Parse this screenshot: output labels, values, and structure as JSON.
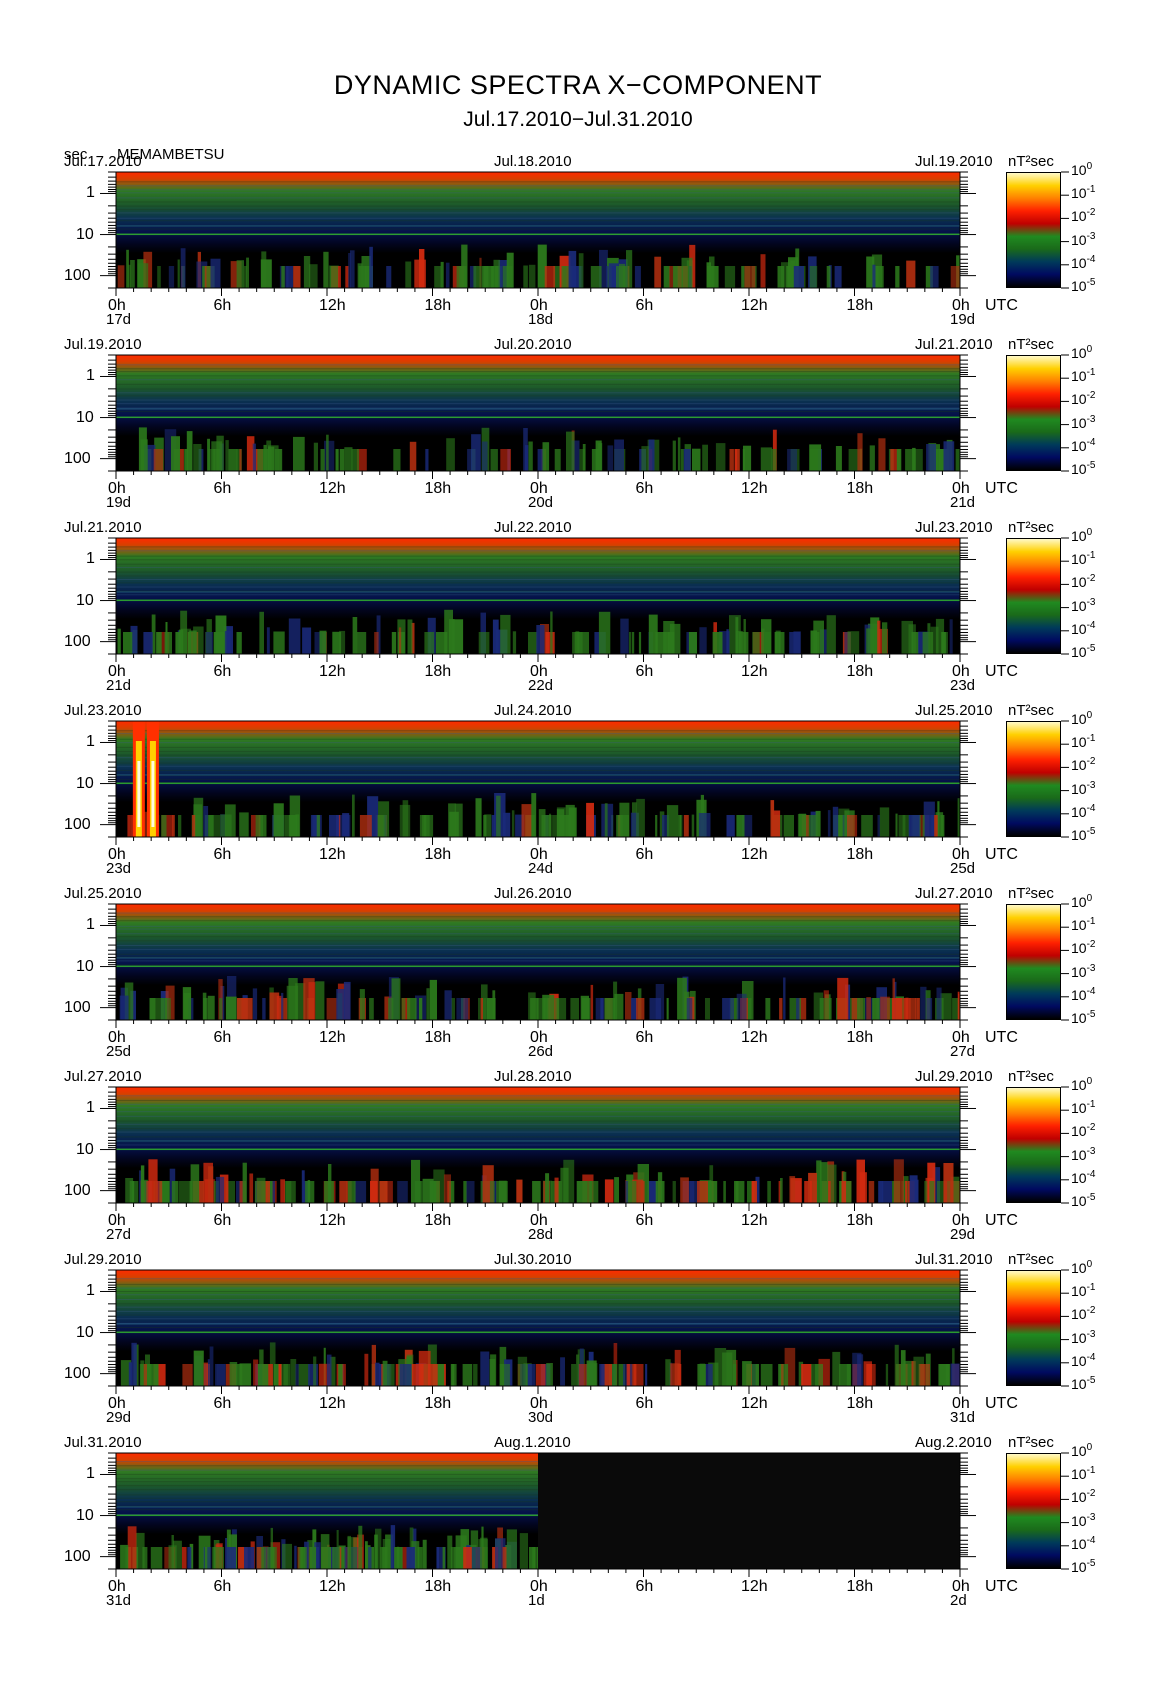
{
  "header": {
    "title": "DYNAMIC SPECTRA X−COMPONENT",
    "subtitle": "Jul.17.2010−Jul.31.2010",
    "unit_label": "sec",
    "station": "MEMAMBETSU"
  },
  "colorbar": {
    "unit": "nT²sec",
    "labels": [
      {
        "base": "10",
        "exp": "0"
      },
      {
        "base": "10",
        "exp": "-1"
      },
      {
        "base": "10",
        "exp": "-2"
      },
      {
        "base": "10",
        "exp": "-3"
      },
      {
        "base": "10",
        "exp": "-4"
      },
      {
        "base": "10",
        "exp": "-5"
      }
    ],
    "colors": [
      "#fff9c8",
      "#ffd000",
      "#ff8000",
      "#ff2000",
      "#c00000",
      "#208a20",
      "#1a6a1a",
      "#003a5a",
      "#000a60",
      "#000000"
    ]
  },
  "axis": {
    "y_ticks": [
      "1",
      "10",
      "100"
    ],
    "x_ticks": [
      "0h",
      "6h",
      "12h",
      "18h",
      "0h",
      "6h",
      "12h",
      "18h",
      "0h"
    ],
    "utc": "UTC"
  },
  "chart_data": {
    "type": "heatmap",
    "title": "DYNAMIC SPECTRA X−COMPONENT",
    "ylabel": "sec",
    "y_scale": "log",
    "ylim": [
      0.3,
      200
    ],
    "color_scale": "log",
    "zlim": [
      1e-05,
      1
    ],
    "panels": [
      {
        "left_date": "Jul.17.2010",
        "mid_date": "Jul.18.2010",
        "right_date": "Jul.19.2010",
        "day_start": "17d",
        "day_mid": "18d",
        "day_end": "19d",
        "activity": 0.45,
        "storms": []
      },
      {
        "left_date": "Jul.19.2010",
        "mid_date": "Jul.20.2010",
        "right_date": "Jul.21.2010",
        "day_start": "19d",
        "day_mid": "20d",
        "day_end": "21d",
        "activity": 0.3,
        "storms": []
      },
      {
        "left_date": "Jul.21.2010",
        "mid_date": "Jul.22.2010",
        "right_date": "Jul.23.2010",
        "day_start": "21d",
        "day_mid": "22d",
        "day_end": "23d",
        "activity": 0.38,
        "storms": []
      },
      {
        "left_date": "Jul.23.2010",
        "mid_date": "Jul.24.2010",
        "right_date": "Jul.25.2010",
        "day_start": "23d",
        "day_mid": "24d",
        "day_end": "25d",
        "activity": 0.5,
        "storms": [
          1.3,
          2.1
        ]
      },
      {
        "left_date": "Jul.25.2010",
        "mid_date": "Jul.26.2010",
        "right_date": "Jul.27.2010",
        "day_start": "25d",
        "day_mid": "26d",
        "day_end": "27d",
        "activity": 0.6,
        "storms": []
      },
      {
        "left_date": "Jul.27.2010",
        "mid_date": "Jul.28.2010",
        "right_date": "Jul.29.2010",
        "day_start": "27d",
        "day_mid": "28d",
        "day_end": "29d",
        "activity": 0.85,
        "storms": []
      },
      {
        "left_date": "Jul.29.2010",
        "mid_date": "Jul.30.2010",
        "right_date": "Jul.31.2010",
        "day_start": "29d",
        "day_mid": "30d",
        "day_end": "31d",
        "activity": 0.8,
        "storms": []
      },
      {
        "left_date": "Jul.31.2010",
        "mid_date": "Aug.1.2010",
        "right_date": "Aug.2.2010",
        "day_start": "31d",
        "day_mid": "1d",
        "day_end": "2d",
        "activity": 0.5,
        "storms": [],
        "data_until_hours": 24
      }
    ]
  }
}
